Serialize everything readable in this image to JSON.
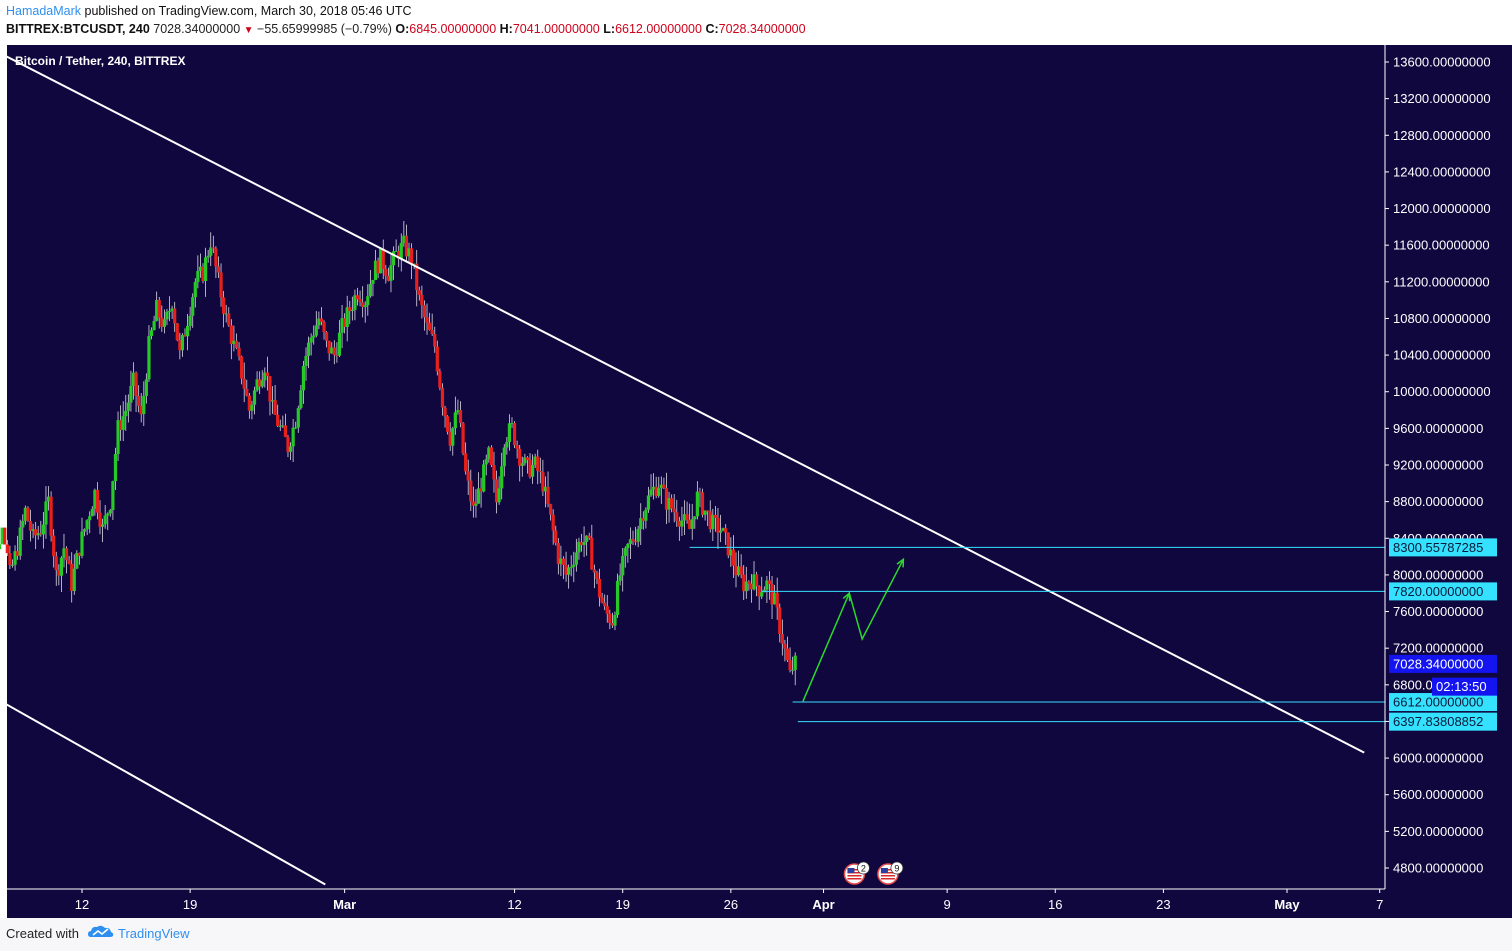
{
  "header": {
    "author": "HamadaMark",
    "published": "published on TradingView.com, March 30, 2018 05:46 UTC",
    "symbol": "BITTREX:BTCUSDT, 240",
    "last": "7028.34000000",
    "change": "−55.65999985 (−0.79%)",
    "o_label": "O:",
    "o_value": "6845.00000000",
    "h_label": "H:",
    "h_value": "7041.00000000",
    "l_label": "L:",
    "l_value": "6612.00000000",
    "c_label": "C:",
    "c_value": "7028.34000000"
  },
  "footer": {
    "created": "Created with",
    "brand": "TradingView"
  },
  "colors": {
    "background": "#10073f",
    "up": "#26c926",
    "down": "#e8201c",
    "trendline": "#ffffff",
    "levels": "#34e2ff",
    "projection": "#2bd92b",
    "last_price_tag": "#1414f0",
    "axis_text": "#ffffff"
  },
  "icons": [
    "us-flag-event-icon",
    "us-flag-event-icon"
  ],
  "chart_data": {
    "type": "candlestick",
    "title": "Bitcoin / Tether, 240, BITTREX",
    "xlabel": "",
    "ylabel": "",
    "ylim": [
      4500,
      13800
    ],
    "grid": false,
    "y_ticks": [
      "13600.00000000",
      "13200.00000000",
      "12800.00000000",
      "12400.00000000",
      "12000.00000000",
      "11600.00000000",
      "11200.00000000",
      "10800.00000000",
      "10400.00000000",
      "10000.00000000",
      "9600.00000000",
      "9200.00000000",
      "8800.00000000",
      "8400.00000000",
      "8000.00000000",
      "7600.00000000",
      "7200.00000000",
      "6800.00000000",
      "6400.00000000",
      "6000.00000000",
      "5600.00000000",
      "5200.00000000",
      "4800.00000000"
    ],
    "x_ticks": [
      {
        "label": "12",
        "date": "2018-02-12",
        "bold": false
      },
      {
        "label": "19",
        "date": "2018-02-19",
        "bold": false
      },
      {
        "label": "Mar",
        "date": "2018-03-01",
        "bold": true
      },
      {
        "label": "12",
        "date": "2018-03-12",
        "bold": false
      },
      {
        "label": "19",
        "date": "2018-03-19",
        "bold": false
      },
      {
        "label": "26",
        "date": "2018-03-26",
        "bold": false
      },
      {
        "label": "Apr",
        "date": "2018-04-01",
        "bold": true
      },
      {
        "label": "9",
        "date": "2018-04-09",
        "bold": false
      },
      {
        "label": "16",
        "date": "2018-04-16",
        "bold": false
      },
      {
        "label": "23",
        "date": "2018-04-23",
        "bold": false
      },
      {
        "label": "May",
        "date": "2018-05-01",
        "bold": true
      },
      {
        "label": "7",
        "date": "2018-05-07",
        "bold": false
      }
    ],
    "price_path": [
      [
        "2018-02-05 12:00",
        7400
      ],
      [
        "2018-02-06 00:00",
        8300
      ],
      [
        "2018-02-06 12:00",
        8100
      ],
      [
        "2018-02-07 00:00",
        8600
      ],
      [
        "2018-02-07 12:00",
        8000
      ],
      [
        "2018-02-08 00:00",
        8300
      ],
      [
        "2018-02-08 12:00",
        8700
      ],
      [
        "2018-02-09 00:00",
        8400
      ],
      [
        "2018-02-09 12:00",
        8500
      ],
      [
        "2018-02-10 00:00",
        8800
      ],
      [
        "2018-02-10 12:00",
        8000
      ],
      [
        "2018-02-11 00:00",
        8300
      ],
      [
        "2018-02-11 12:00",
        7900
      ],
      [
        "2018-02-12 00:00",
        8300
      ],
      [
        "2018-02-12 12:00",
        8600
      ],
      [
        "2018-02-13 00:00",
        8900
      ],
      [
        "2018-02-13 12:00",
        8500
      ],
      [
        "2018-02-14 00:00",
        8800
      ],
      [
        "2018-02-14 12:00",
        9600
      ],
      [
        "2018-02-15 00:00",
        9800
      ],
      [
        "2018-02-15 12:00",
        10100
      ],
      [
        "2018-02-16 00:00",
        9700
      ],
      [
        "2018-02-16 12:00",
        10500
      ],
      [
        "2018-02-17 00:00",
        10900
      ],
      [
        "2018-02-17 12:00",
        10700
      ],
      [
        "2018-02-18 00:00",
        11000
      ],
      [
        "2018-02-18 12:00",
        10400
      ],
      [
        "2018-02-19 00:00",
        10800
      ],
      [
        "2018-02-19 12:00",
        11200
      ],
      [
        "2018-02-20 00:00",
        11300
      ],
      [
        "2018-02-20 12:00",
        11650
      ],
      [
        "2018-02-21 00:00",
        11200
      ],
      [
        "2018-02-21 12:00",
        10800
      ],
      [
        "2018-02-22 00:00",
        10500
      ],
      [
        "2018-02-22 12:00",
        10200
      ],
      [
        "2018-02-23 00:00",
        9800
      ],
      [
        "2018-02-23 12:00",
        10100
      ],
      [
        "2018-02-24 00:00",
        10300
      ],
      [
        "2018-02-24 12:00",
        9800
      ],
      [
        "2018-02-25 00:00",
        9600
      ],
      [
        "2018-02-25 12:00",
        9400
      ],
      [
        "2018-02-26 00:00",
        9700
      ],
      [
        "2018-02-26 12:00",
        10300
      ],
      [
        "2018-02-27 00:00",
        10600
      ],
      [
        "2018-02-27 12:00",
        10800
      ],
      [
        "2018-02-28 00:00",
        10500
      ],
      [
        "2018-02-28 12:00",
        10400
      ],
      [
        "2018-03-01 00:00",
        10700
      ],
      [
        "2018-03-01 12:00",
        10900
      ],
      [
        "2018-03-02 00:00",
        11100
      ],
      [
        "2018-03-02 12:00",
        11000
      ],
      [
        "2018-03-03 00:00",
        11300
      ],
      [
        "2018-03-03 12:00",
        11450
      ],
      [
        "2018-03-04 00:00",
        11300
      ],
      [
        "2018-03-04 12:00",
        11500
      ],
      [
        "2018-03-05 00:00",
        11600
      ],
      [
        "2018-03-05 12:00",
        11450
      ],
      [
        "2018-03-06 00:00",
        11000
      ],
      [
        "2018-03-06 12:00",
        10700
      ],
      [
        "2018-03-07 00:00",
        10500
      ],
      [
        "2018-03-07 12:00",
        9900
      ],
      [
        "2018-03-08 00:00",
        9500
      ],
      [
        "2018-03-08 12:00",
        9800
      ],
      [
        "2018-03-09 00:00",
        9100
      ],
      [
        "2018-03-09 12:00",
        8700
      ],
      [
        "2018-03-10 00:00",
        9000
      ],
      [
        "2018-03-10 12:00",
        9300
      ],
      [
        "2018-03-11 00:00",
        8800
      ],
      [
        "2018-03-11 12:00",
        9500
      ],
      [
        "2018-03-12 00:00",
        9600
      ],
      [
        "2018-03-12 12:00",
        9300
      ],
      [
        "2018-03-13 00:00",
        9150
      ],
      [
        "2018-03-13 12:00",
        9200
      ],
      [
        "2018-03-14 00:00",
        9000
      ],
      [
        "2018-03-14 12:00",
        8600
      ],
      [
        "2018-03-15 00:00",
        8200
      ],
      [
        "2018-03-15 12:00",
        8000
      ],
      [
        "2018-03-16 00:00",
        8200
      ],
      [
        "2018-03-16 12:00",
        8400
      ],
      [
        "2018-03-17 00:00",
        8300
      ],
      [
        "2018-03-17 12:00",
        7900
      ],
      [
        "2018-03-18 00:00",
        7600
      ],
      [
        "2018-03-18 12:00",
        7500
      ],
      [
        "2018-03-19 00:00",
        8000
      ],
      [
        "2018-03-19 12:00",
        8300
      ],
      [
        "2018-03-20 00:00",
        8450
      ],
      [
        "2018-03-20 12:00",
        8700
      ],
      [
        "2018-03-21 00:00",
        8900
      ],
      [
        "2018-03-21 12:00",
        9000
      ],
      [
        "2018-03-22 00:00",
        8800
      ],
      [
        "2018-03-22 12:00",
        8700
      ],
      [
        "2018-03-23 00:00",
        8600
      ],
      [
        "2018-03-23 12:00",
        8500
      ],
      [
        "2018-03-24 00:00",
        8850
      ],
      [
        "2018-03-24 12:00",
        8700
      ],
      [
        "2018-03-25 00:00",
        8550
      ],
      [
        "2018-03-25 12:00",
        8500
      ],
      [
        "2018-03-26 00:00",
        8300
      ],
      [
        "2018-03-26 12:00",
        8050
      ],
      [
        "2018-03-27 00:00",
        7900
      ],
      [
        "2018-03-27 12:00",
        7950
      ],
      [
        "2018-03-28 00:00",
        7850
      ],
      [
        "2018-03-28 12:00",
        7900
      ],
      [
        "2018-03-29 00:00",
        7700
      ],
      [
        "2018-03-29 12:00",
        7300
      ],
      [
        "2018-03-30 00:00",
        6900
      ],
      [
        "2018-03-30 05:46",
        7028.34
      ]
    ],
    "last_price": 7028.34,
    "countdown": "02:13:50",
    "levels": [
      {
        "label": "8300.55787285",
        "price": 8300.55787285,
        "from": "2018-03-23 08:00"
      },
      {
        "label": "7820.00000000",
        "price": 7820,
        "from": "2018-03-28 00:00"
      },
      {
        "label": "6612.00000000",
        "price": 6612,
        "from": "2018-03-30 00:00"
      },
      {
        "label": "6397.83808852",
        "price": 6397.83808852,
        "from": "2018-03-30 08:00"
      }
    ],
    "trendlines": [
      {
        "from": [
          "2018-02-05 12:00",
          13800
        ],
        "to": [
          "2018-05-06 00:00",
          6060
        ]
      },
      {
        "from": [
          "2018-02-05 12:00",
          6740
        ],
        "to": [
          "2018-02-27 18:00",
          4620
        ]
      }
    ],
    "projection": [
      [
        "2018-03-30 16:00",
        6620
      ],
      [
        "2018-04-02 16:00",
        7800
      ],
      [
        "2018-04-03 12:00",
        7300
      ],
      [
        "2018-04-06 04:00",
        8170
      ]
    ],
    "event_badges": [
      {
        "date": "2018-04-03 00:00",
        "count": "2"
      },
      {
        "date": "2018-04-05 04:00",
        "count": "9"
      }
    ]
  }
}
